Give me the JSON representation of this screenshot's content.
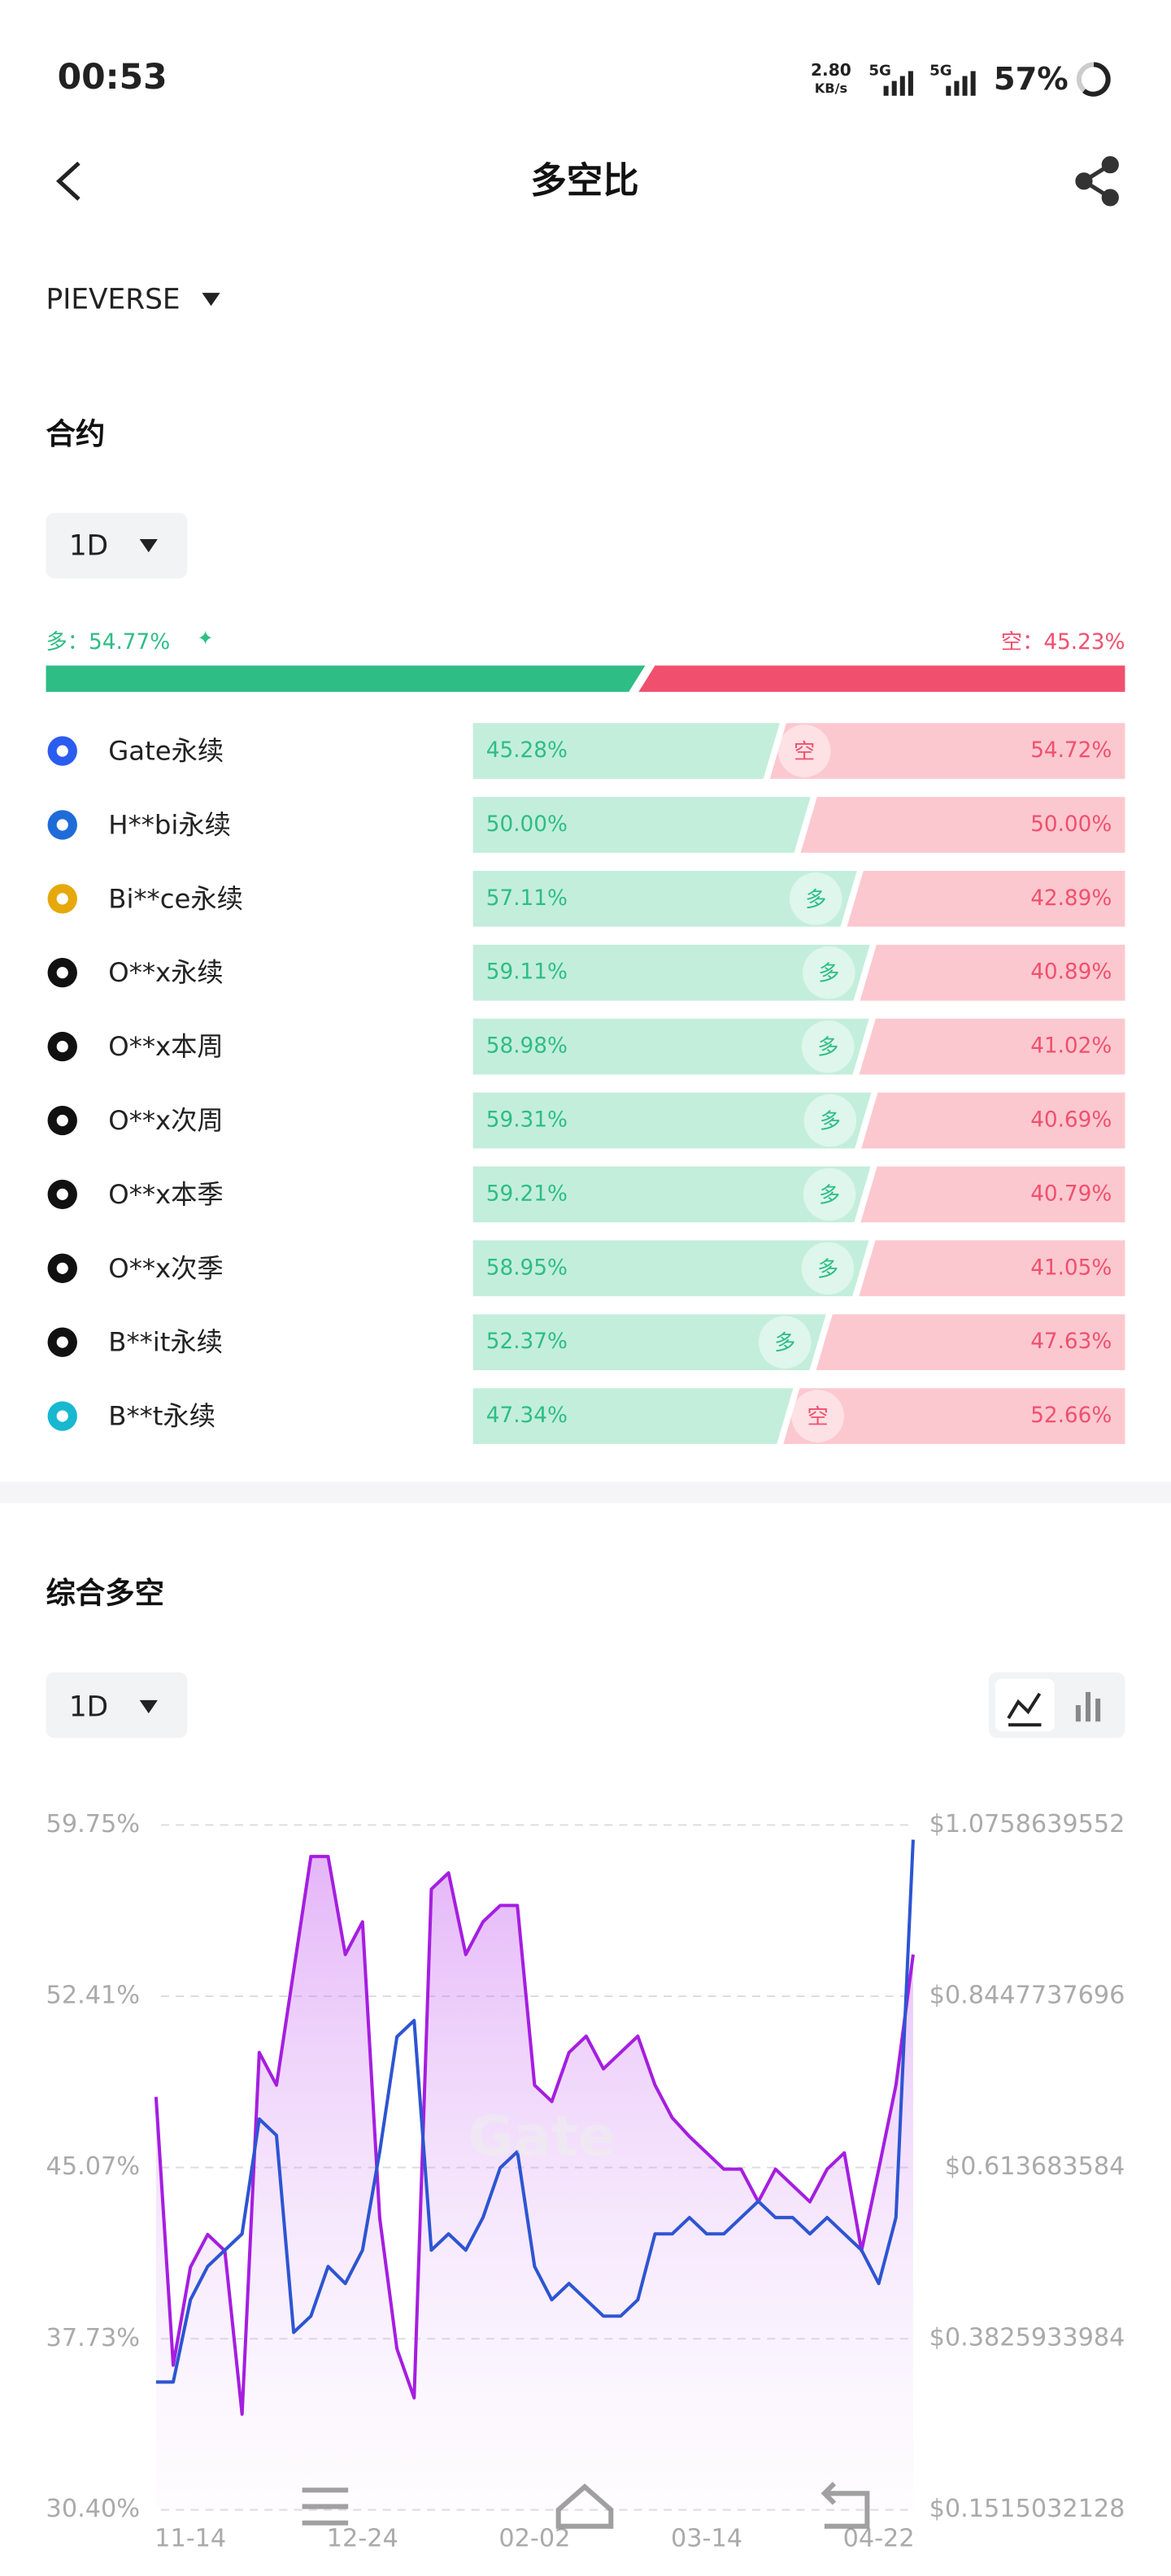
{
  "status": {
    "time": "00:53",
    "speed": "2.80",
    "speed_unit": "KB/s",
    "net1": "5G",
    "net2": "5G",
    "battery": "57%"
  },
  "header": {
    "title": "多空比"
  },
  "token": "PIEVERSE",
  "contract": {
    "title": "合约",
    "period": "1D",
    "ratio": {
      "long": 54.77,
      "long_label": "多：54.77%",
      "short": 45.23,
      "short_label": "空：45.23%"
    },
    "rows": [
      {
        "name": "Gate永续",
        "long": 45.28,
        "long_label": "45.28%",
        "short": 54.72,
        "short_label": "54.72%",
        "badge": "空"
      },
      {
        "name": "H**bi永续",
        "long": 50.0,
        "long_label": "50.00%",
        "short": 50.0,
        "short_label": "50.00%"
      },
      {
        "name": "Bi**ce永续",
        "long": 57.11,
        "long_label": "57.11%",
        "short": 42.89,
        "short_label": "42.89%",
        "badge": "多"
      },
      {
        "name": "O**x永续",
        "long": 59.11,
        "long_label": "59.11%",
        "short": 40.89,
        "short_label": "40.89%",
        "badge": "多"
      },
      {
        "name": "O**x本周",
        "long": 58.98,
        "long_label": "58.98%",
        "short": 41.02,
        "short_label": "41.02%",
        "badge": "多"
      },
      {
        "name": "O**x次周",
        "long": 59.31,
        "long_label": "59.31%",
        "short": 40.69,
        "short_label": "40.69%",
        "badge": "多"
      },
      {
        "name": "O**x本季",
        "long": 59.21,
        "long_label": "59.21%",
        "short": 40.79,
        "short_label": "40.79%",
        "badge": "多"
      },
      {
        "name": "O**x次季",
        "long": 58.95,
        "long_label": "58.95%",
        "short": 41.05,
        "short_label": "41.05%",
        "badge": "多"
      },
      {
        "name": "B**it永续",
        "long": 52.37,
        "long_label": "52.37%",
        "short": 47.63,
        "short_label": "47.63%",
        "badge": "多"
      },
      {
        "name": "B**t永续",
        "long": 47.34,
        "long_label": "47.34%",
        "short": 52.66,
        "short_label": "52.66%",
        "badge": "空"
      }
    ]
  },
  "chart_data": {
    "type": "line",
    "title": "综合多空",
    "period": "1D",
    "categories": [
      null,
      null,
      "11-14",
      null,
      null,
      null,
      null,
      null,
      null,
      null,
      null,
      null,
      "12-24",
      null,
      null,
      null,
      null,
      null,
      null,
      null,
      null,
      null,
      "02-02",
      null,
      null,
      null,
      null,
      null,
      null,
      null,
      null,
      null,
      "03-14",
      null,
      null,
      null,
      null,
      null,
      null,
      null,
      null,
      null,
      "04-22",
      null,
      null
    ],
    "ylim": [
      30.4,
      59.75
    ],
    "yticks": [
      {
        "value": 30.4,
        "label": "30.40%"
      },
      {
        "value": 37.73,
        "label": "37.73%"
      },
      {
        "value": 45.07,
        "label": "45.07%"
      },
      {
        "value": 52.41,
        "label": "52.41%"
      },
      {
        "value": 59.75,
        "label": "59.75%"
      }
    ],
    "y2lim": [
      0.1515032128,
      1.0758639552
    ],
    "y2ticks": [
      {
        "value": 0.1515032128,
        "label": "$0.1515032128"
      },
      {
        "value": 0.3825933984,
        "label": "$0.3825933984"
      },
      {
        "value": 0.613683584,
        "label": "$0.613683584"
      },
      {
        "value": 0.8447737696,
        "label": "$0.8447737696"
      },
      {
        "value": 1.0758639552,
        "label": "$1.0758639552"
      }
    ],
    "grid": true,
    "series": [
      {
        "color": "#a51ee0",
        "values": [
          48.1,
          36.6,
          40.8,
          42.2,
          41.5,
          34.5,
          50.0,
          48.6,
          53.5,
          58.4,
          58.4,
          54.2,
          55.6,
          42.9,
          37.3,
          35.2,
          57.0,
          57.7,
          54.2,
          55.6,
          56.3,
          56.3,
          48.6,
          47.9,
          50.0,
          50.7,
          49.3,
          50.0,
          50.7,
          48.6,
          47.2,
          46.4,
          45.7,
          45.0,
          45.0,
          43.6,
          45.0,
          44.3,
          43.6,
          45.0,
          45.7,
          41.5,
          45.0,
          48.6,
          54.2
        ]
      },
      {
        "color": "#2d55d2",
        "axis": "y2",
        "values": [
          0.324,
          0.324,
          0.435,
          0.48,
          0.502,
          0.524,
          0.679,
          0.657,
          0.391,
          0.413,
          0.48,
          0.457,
          0.502,
          0.635,
          0.79,
          0.812,
          0.502,
          0.524,
          0.502,
          0.546,
          0.613,
          0.635,
          0.48,
          0.435,
          0.457,
          0.435,
          0.413,
          0.413,
          0.435,
          0.524,
          0.524,
          0.546,
          0.524,
          0.524,
          0.546,
          0.568,
          0.546,
          0.546,
          0.524,
          0.546,
          0.524,
          0.502,
          0.457,
          0.546,
          1.056
        ]
      }
    ]
  }
}
